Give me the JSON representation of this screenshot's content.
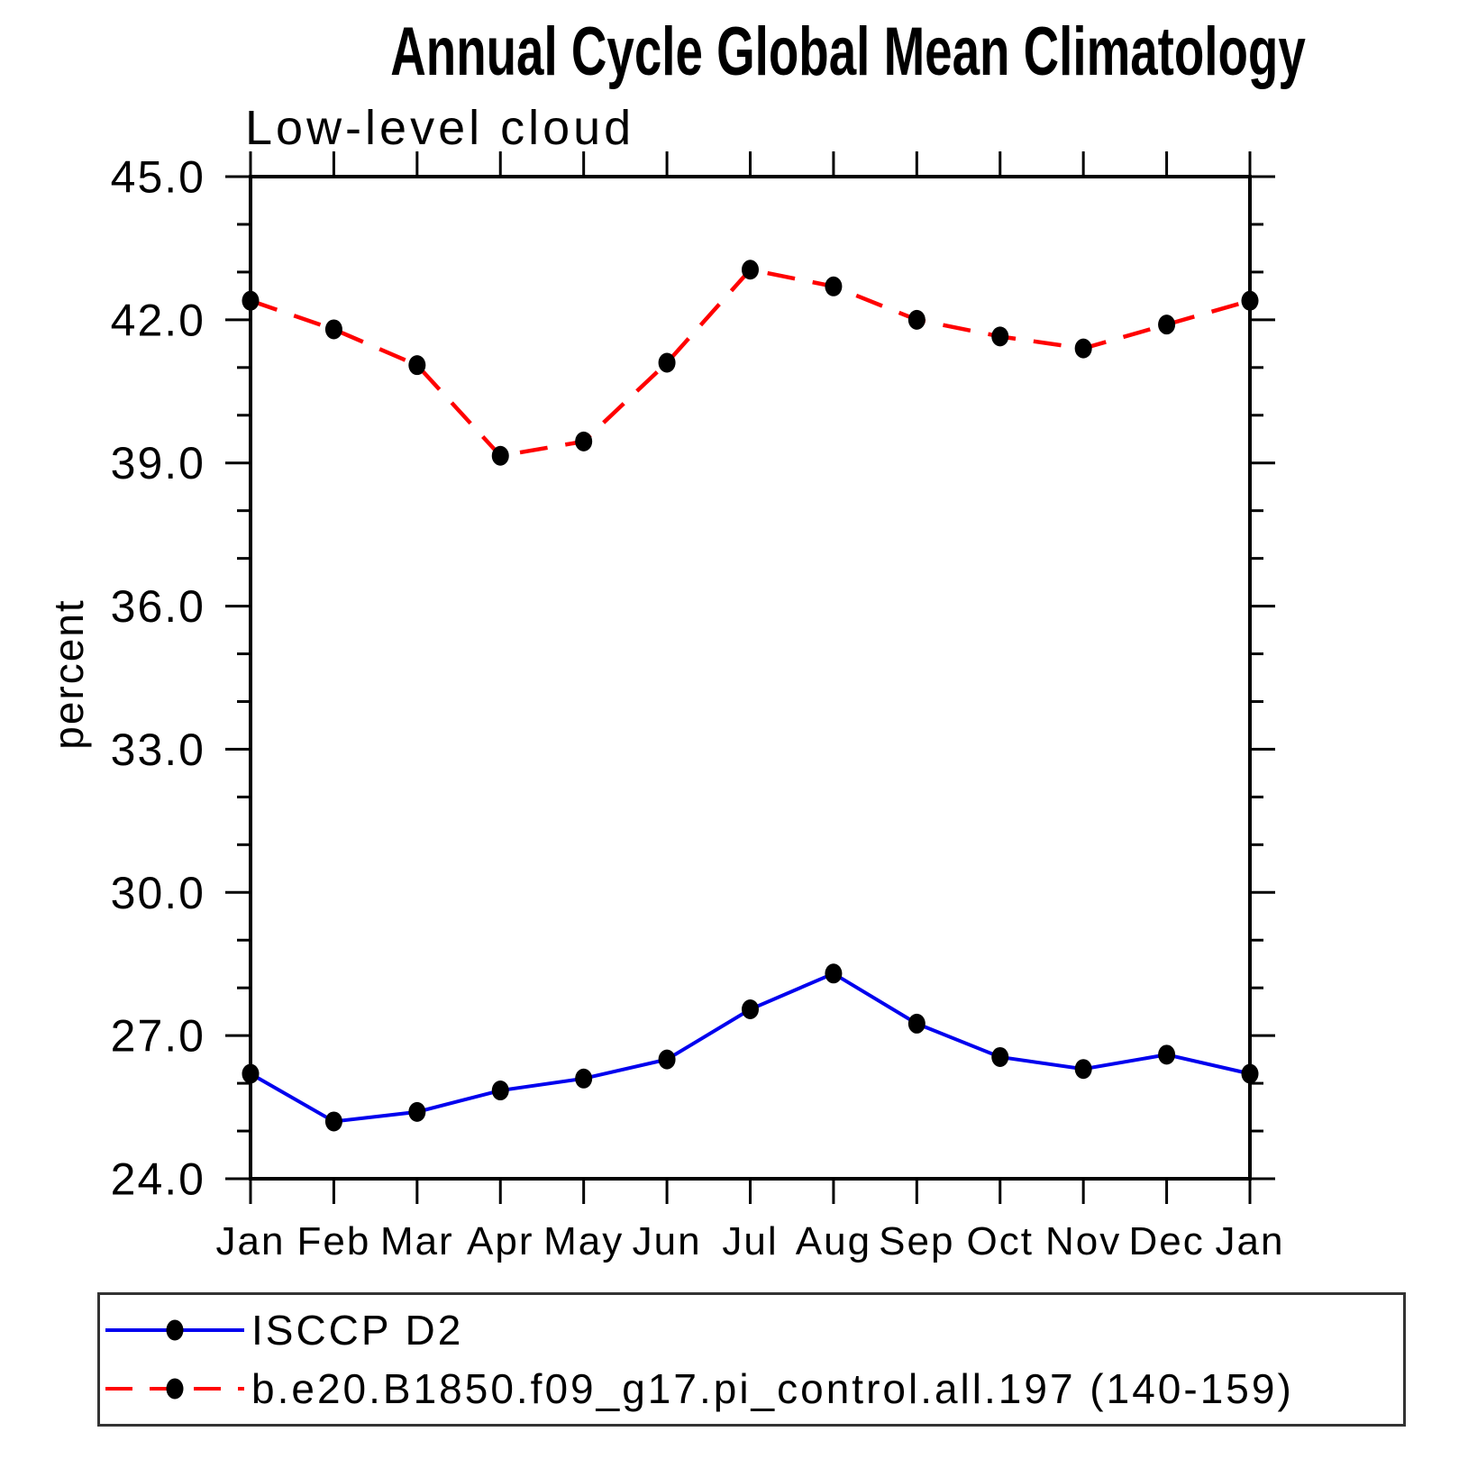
{
  "title": "Annual Cycle Global Mean Climatology",
  "subtitle": "Low-level cloud",
  "y_axis": {
    "label": "percent",
    "tick_labels": [
      "24.0",
      "27.0",
      "30.0",
      "33.0",
      "36.0",
      "39.0",
      "42.0",
      "45.0"
    ]
  },
  "x_axis": {
    "tick_labels": [
      "Jan",
      "Feb",
      "Mar",
      "Apr",
      "May",
      "Jun",
      "Jul",
      "Aug",
      "Sep",
      "Oct",
      "Nov",
      "Dec",
      "Jan"
    ]
  },
  "legend": {
    "items": [
      {
        "label": "ISCCP D2",
        "color": "#0000ee",
        "style": "solid"
      },
      {
        "label": "b.e20.B1850.f09_g17.pi_control.all.197 (140-159)",
        "color": "#ff0000",
        "style": "dashed"
      }
    ]
  },
  "chart_data": {
    "type": "line",
    "title": "Annual Cycle Global Mean Climatology",
    "subtitle": "Low-level cloud",
    "xlabel": "",
    "ylabel": "percent",
    "categories": [
      "Jan",
      "Feb",
      "Mar",
      "Apr",
      "May",
      "Jun",
      "Jul",
      "Aug",
      "Sep",
      "Oct",
      "Nov",
      "Dec",
      "Jan"
    ],
    "ylim": [
      24,
      45
    ],
    "ytick_major": [
      24,
      27,
      30,
      33,
      36,
      39,
      42,
      45
    ],
    "ytick_labels": [
      "24.0",
      "27.0",
      "30.0",
      "33.0",
      "36.0",
      "39.0",
      "42.0",
      "45.0"
    ],
    "ytick_minor_step": 1,
    "grid": false,
    "legend_position": "bottom-box",
    "marker": {
      "shape": "filled-circle",
      "color": "#000000"
    },
    "series": [
      {
        "name": "ISCCP D2",
        "color": "#0000ee",
        "line_style": "solid",
        "values": [
          26.2,
          25.2,
          25.4,
          25.85,
          26.1,
          26.5,
          27.55,
          28.3,
          27.25,
          26.55,
          26.3,
          26.6,
          26.2
        ]
      },
      {
        "name": "b.e20.B1850.f09_g17.pi_control.all.197 (140-159)",
        "color": "#ff0000",
        "line_style": "dashed",
        "values": [
          42.4,
          41.8,
          41.05,
          39.15,
          39.45,
          41.1,
          43.05,
          42.7,
          42.0,
          41.65,
          41.4,
          41.9,
          42.4
        ]
      }
    ]
  }
}
